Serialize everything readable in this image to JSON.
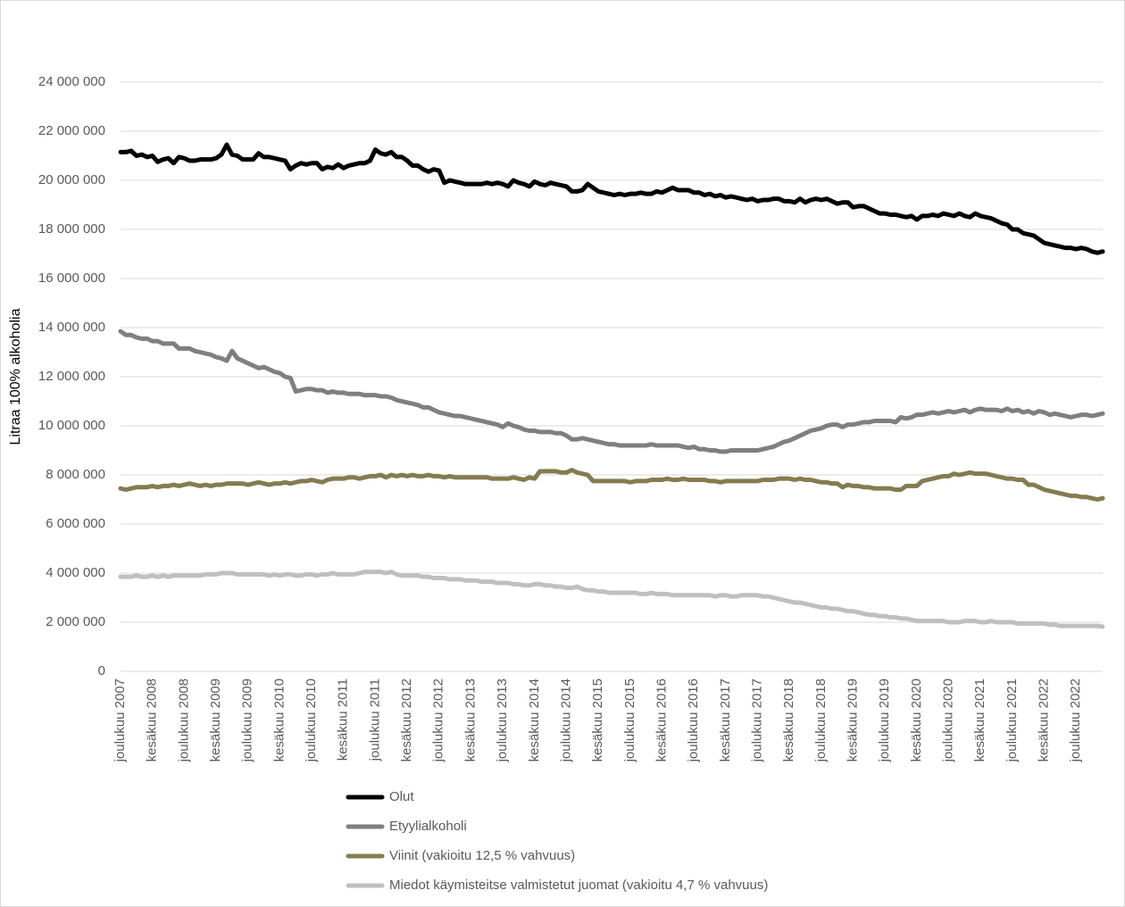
{
  "chart_data": {
    "type": "line",
    "y_label": "Litraa 100% alkoholia",
    "categories": [
      "joulukuu 2007",
      null,
      null,
      null,
      null,
      null,
      "kesäkuu 2008",
      null,
      null,
      null,
      null,
      null,
      "joulukuu 2008",
      null,
      null,
      null,
      null,
      null,
      "kesäkuu 2009",
      null,
      null,
      null,
      null,
      null,
      "joulukuu 2009",
      null,
      null,
      null,
      null,
      null,
      "kesäkuu 2010",
      null,
      null,
      null,
      null,
      null,
      "joulukuu 2010",
      null,
      null,
      null,
      null,
      null,
      "kesäkuu 2011",
      null,
      null,
      null,
      null,
      null,
      "joulukuu 2011",
      null,
      null,
      null,
      null,
      null,
      "kesäkuu 2012",
      null,
      null,
      null,
      null,
      null,
      "joulukuu 2012",
      null,
      null,
      null,
      null,
      null,
      "kesäkuu 2013",
      null,
      null,
      null,
      null,
      null,
      "joulukuu 2013",
      null,
      null,
      null,
      null,
      null,
      "kesäkuu 2014",
      null,
      null,
      null,
      null,
      null,
      "joulukuu 2014",
      null,
      null,
      null,
      null,
      null,
      "kesäkuu 2015",
      null,
      null,
      null,
      null,
      null,
      "joulukuu 2015",
      null,
      null,
      null,
      null,
      null,
      "kesäkuu 2016",
      null,
      null,
      null,
      null,
      null,
      "joulukuu 2016",
      null,
      null,
      null,
      null,
      null,
      "kesäkuu 2017",
      null,
      null,
      null,
      null,
      null,
      "joulukuu 2017",
      null,
      null,
      null,
      null,
      null,
      "kesäkuu 2018",
      null,
      null,
      null,
      null,
      null,
      "joulukuu 2018",
      null,
      null,
      null,
      null,
      null,
      "kesäkuu 2019",
      null,
      null,
      null,
      null,
      null,
      "joulukuu 2019",
      null,
      null,
      null,
      null,
      null,
      "kesäkuu 2020",
      null,
      null,
      null,
      null,
      null,
      "joulukuu 2020",
      null,
      null,
      null,
      null,
      null,
      "kesäkuu 2021",
      null,
      null,
      null,
      null,
      null,
      "joulukuu 2021",
      null,
      null,
      null,
      null,
      null,
      "kesäkuu 2022",
      null,
      null,
      null,
      null,
      null,
      "joulukuu 2022",
      null,
      null,
      null,
      null,
      null
    ],
    "series": [
      {
        "name": "Olut",
        "color": "#000000",
        "values": [
          21150000,
          21150000,
          21200000,
          21000000,
          21050000,
          20950000,
          21000000,
          20750000,
          20850000,
          20900000,
          20700000,
          20950000,
          20900000,
          20800000,
          20800000,
          20850000,
          20850000,
          20850000,
          20900000,
          21050000,
          21450000,
          21050000,
          21000000,
          20850000,
          20850000,
          20850000,
          21100000,
          20950000,
          20950000,
          20900000,
          20850000,
          20800000,
          20450000,
          20600000,
          20700000,
          20650000,
          20700000,
          20700000,
          20450000,
          20550000,
          20500000,
          20650000,
          20500000,
          20600000,
          20650000,
          20700000,
          20700000,
          20800000,
          21250000,
          21100000,
          21050000,
          21150000,
          20950000,
          20950000,
          20800000,
          20600000,
          20600000,
          20450000,
          20350000,
          20450000,
          20400000,
          19900000,
          20000000,
          19950000,
          19900000,
          19850000,
          19850000,
          19850000,
          19850000,
          19900000,
          19850000,
          19900000,
          19850000,
          19750000,
          20000000,
          19900000,
          19850000,
          19750000,
          19950000,
          19850000,
          19800000,
          19900000,
          19850000,
          19800000,
          19750000,
          19550000,
          19550000,
          19600000,
          19850000,
          19700000,
          19550000,
          19500000,
          19450000,
          19400000,
          19450000,
          19400000,
          19450000,
          19450000,
          19500000,
          19450000,
          19450000,
          19550000,
          19500000,
          19600000,
          19700000,
          19600000,
          19600000,
          19600000,
          19500000,
          19500000,
          19400000,
          19450000,
          19350000,
          19400000,
          19300000,
          19350000,
          19300000,
          19250000,
          19200000,
          19250000,
          19150000,
          19200000,
          19200000,
          19250000,
          19250000,
          19150000,
          19150000,
          19100000,
          19250000,
          19100000,
          19200000,
          19250000,
          19200000,
          19250000,
          19150000,
          19050000,
          19100000,
          19100000,
          18900000,
          18950000,
          18950000,
          18850000,
          18750000,
          18650000,
          18650000,
          18600000,
          18600000,
          18550000,
          18500000,
          18550000,
          18400000,
          18550000,
          18550000,
          18600000,
          18550000,
          18650000,
          18600000,
          18550000,
          18650000,
          18550000,
          18500000,
          18650000,
          18550000,
          18500000,
          18450000,
          18350000,
          18250000,
          18200000,
          18000000,
          18000000,
          17850000,
          17800000,
          17750000,
          17600000,
          17450000,
          17400000,
          17350000,
          17300000,
          17250000,
          17250000,
          17200000,
          17250000,
          17200000,
          17100000,
          17050000,
          17100000
        ]
      },
      {
        "name": "Etyylialkoholi",
        "color": "#7f7f7f",
        "values": [
          13850000,
          13700000,
          13700000,
          13600000,
          13550000,
          13550000,
          13450000,
          13450000,
          13350000,
          13350000,
          13350000,
          13150000,
          13150000,
          13150000,
          13050000,
          13000000,
          12950000,
          12900000,
          12800000,
          12750000,
          12650000,
          13050000,
          12750000,
          12650000,
          12550000,
          12450000,
          12350000,
          12400000,
          12300000,
          12200000,
          12150000,
          12000000,
          11950000,
          11400000,
          11450000,
          11500000,
          11500000,
          11450000,
          11450000,
          11350000,
          11400000,
          11350000,
          11350000,
          11300000,
          11300000,
          11300000,
          11250000,
          11250000,
          11250000,
          11200000,
          11200000,
          11150000,
          11050000,
          11000000,
          10950000,
          10900000,
          10850000,
          10750000,
          10750000,
          10650000,
          10550000,
          10500000,
          10450000,
          10400000,
          10400000,
          10350000,
          10300000,
          10250000,
          10200000,
          10150000,
          10100000,
          10050000,
          9950000,
          10100000,
          10000000,
          9950000,
          9850000,
          9800000,
          9800000,
          9750000,
          9750000,
          9750000,
          9700000,
          9700000,
          9600000,
          9450000,
          9450000,
          9500000,
          9450000,
          9400000,
          9350000,
          9300000,
          9250000,
          9250000,
          9200000,
          9200000,
          9200000,
          9200000,
          9200000,
          9200000,
          9250000,
          9200000,
          9200000,
          9200000,
          9200000,
          9200000,
          9150000,
          9100000,
          9150000,
          9050000,
          9050000,
          9000000,
          9000000,
          8950000,
          8950000,
          9000000,
          9000000,
          9000000,
          9000000,
          9000000,
          9000000,
          9050000,
          9100000,
          9150000,
          9250000,
          9350000,
          9400000,
          9500000,
          9600000,
          9700000,
          9800000,
          9850000,
          9900000,
          10000000,
          10050000,
          10050000,
          9950000,
          10050000,
          10050000,
          10100000,
          10150000,
          10150000,
          10200000,
          10200000,
          10200000,
          10200000,
          10150000,
          10350000,
          10300000,
          10350000,
          10450000,
          10450000,
          10500000,
          10550000,
          10500000,
          10550000,
          10600000,
          10550000,
          10600000,
          10650000,
          10550000,
          10650000,
          10700000,
          10650000,
          10650000,
          10650000,
          10600000,
          10700000,
          10600000,
          10650000,
          10550000,
          10600000,
          10500000,
          10600000,
          10550000,
          10450000,
          10500000,
          10450000,
          10400000,
          10350000,
          10400000,
          10450000,
          10450000,
          10400000,
          10450000,
          10500000
        ]
      },
      {
        "name": "Viinit (vakioitu 12,5 % vahvuus)",
        "color": "#857b4f",
        "values": [
          7450000,
          7400000,
          7450000,
          7500000,
          7500000,
          7500000,
          7550000,
          7500000,
          7550000,
          7550000,
          7600000,
          7550000,
          7600000,
          7650000,
          7600000,
          7550000,
          7600000,
          7550000,
          7600000,
          7600000,
          7650000,
          7650000,
          7650000,
          7650000,
          7600000,
          7650000,
          7700000,
          7650000,
          7600000,
          7650000,
          7650000,
          7700000,
          7650000,
          7700000,
          7750000,
          7750000,
          7800000,
          7750000,
          7700000,
          7800000,
          7850000,
          7850000,
          7850000,
          7900000,
          7900000,
          7850000,
          7900000,
          7950000,
          7950000,
          8000000,
          7900000,
          8000000,
          7950000,
          8000000,
          7950000,
          8000000,
          7950000,
          7950000,
          8000000,
          7950000,
          7950000,
          7900000,
          7950000,
          7900000,
          7900000,
          7900000,
          7900000,
          7900000,
          7900000,
          7900000,
          7850000,
          7850000,
          7850000,
          7850000,
          7900000,
          7850000,
          7800000,
          7900000,
          7850000,
          8150000,
          8150000,
          8150000,
          8150000,
          8100000,
          8100000,
          8200000,
          8100000,
          8050000,
          8000000,
          7750000,
          7750000,
          7750000,
          7750000,
          7750000,
          7750000,
          7750000,
          7700000,
          7750000,
          7750000,
          7750000,
          7800000,
          7800000,
          7800000,
          7850000,
          7800000,
          7800000,
          7850000,
          7800000,
          7800000,
          7800000,
          7800000,
          7750000,
          7750000,
          7700000,
          7750000,
          7750000,
          7750000,
          7750000,
          7750000,
          7750000,
          7750000,
          7800000,
          7800000,
          7800000,
          7850000,
          7850000,
          7850000,
          7800000,
          7850000,
          7800000,
          7800000,
          7750000,
          7700000,
          7700000,
          7650000,
          7650000,
          7500000,
          7600000,
          7550000,
          7550000,
          7500000,
          7500000,
          7450000,
          7450000,
          7450000,
          7450000,
          7400000,
          7400000,
          7550000,
          7550000,
          7550000,
          7750000,
          7800000,
          7850000,
          7900000,
          7950000,
          7950000,
          8050000,
          8000000,
          8050000,
          8100000,
          8050000,
          8050000,
          8050000,
          8000000,
          7950000,
          7900000,
          7850000,
          7850000,
          7800000,
          7800000,
          7600000,
          7600000,
          7500000,
          7400000,
          7350000,
          7300000,
          7250000,
          7200000,
          7150000,
          7150000,
          7100000,
          7100000,
          7050000,
          7000000,
          7050000
        ]
      },
      {
        "name": "Miedot käymisteitse valmistetut juomat (vakioitu 4,7 % vahvuus)",
        "color": "#bfbfbf",
        "values": [
          3850000,
          3850000,
          3850000,
          3900000,
          3850000,
          3850000,
          3900000,
          3850000,
          3900000,
          3850000,
          3900000,
          3900000,
          3900000,
          3900000,
          3900000,
          3900000,
          3950000,
          3950000,
          3950000,
          4000000,
          4000000,
          4000000,
          3950000,
          3950000,
          3950000,
          3950000,
          3950000,
          3950000,
          3900000,
          3950000,
          3900000,
          3950000,
          3950000,
          3900000,
          3900000,
          3950000,
          3950000,
          3900000,
          3950000,
          3950000,
          4000000,
          3950000,
          3950000,
          3950000,
          3950000,
          4000000,
          4050000,
          4050000,
          4050000,
          4050000,
          4000000,
          4050000,
          3950000,
          3900000,
          3900000,
          3900000,
          3900000,
          3850000,
          3850000,
          3800000,
          3800000,
          3800000,
          3750000,
          3750000,
          3750000,
          3700000,
          3700000,
          3700000,
          3650000,
          3650000,
          3650000,
          3600000,
          3600000,
          3600000,
          3550000,
          3550000,
          3500000,
          3500000,
          3550000,
          3550000,
          3500000,
          3500000,
          3450000,
          3450000,
          3400000,
          3400000,
          3450000,
          3350000,
          3300000,
          3300000,
          3250000,
          3250000,
          3200000,
          3200000,
          3200000,
          3200000,
          3200000,
          3200000,
          3150000,
          3150000,
          3200000,
          3150000,
          3150000,
          3150000,
          3100000,
          3100000,
          3100000,
          3100000,
          3100000,
          3100000,
          3100000,
          3100000,
          3050000,
          3100000,
          3100000,
          3050000,
          3050000,
          3100000,
          3100000,
          3100000,
          3100000,
          3050000,
          3050000,
          3000000,
          2950000,
          2900000,
          2850000,
          2800000,
          2800000,
          2750000,
          2700000,
          2650000,
          2600000,
          2600000,
          2550000,
          2550000,
          2500000,
          2450000,
          2450000,
          2400000,
          2350000,
          2300000,
          2300000,
          2250000,
          2250000,
          2200000,
          2200000,
          2150000,
          2150000,
          2100000,
          2050000,
          2050000,
          2050000,
          2050000,
          2050000,
          2050000,
          2000000,
          2000000,
          2000000,
          2050000,
          2050000,
          2050000,
          2000000,
          2000000,
          2050000,
          2000000,
          2000000,
          2000000,
          2000000,
          1950000,
          1950000,
          1950000,
          1950000,
          1950000,
          1950000,
          1900000,
          1900000,
          1850000,
          1850000,
          1850000,
          1850000,
          1850000,
          1850000,
          1850000,
          1850000,
          1820000
        ]
      }
    ],
    "ylim": [
      0,
      24000000
    ],
    "yticks": [
      0,
      {
        "value": 2000000,
        "label": "2 000 000"
      },
      {
        "value": 4000000,
        "label": "4 000 000"
      },
      {
        "value": 6000000,
        "label": "6 000 000"
      },
      {
        "value": 8000000,
        "label": "8 000 000"
      },
      {
        "value": 10000000,
        "label": "10 000 000"
      },
      {
        "value": 12000000,
        "label": "12 000 000"
      },
      {
        "value": 14000000,
        "label": "14 000 000"
      },
      {
        "value": 16000000,
        "label": "16 000 000"
      },
      {
        "value": 18000000,
        "label": "18 000 000"
      },
      {
        "value": 20000000,
        "label": "20 000 000"
      },
      {
        "value": 22000000,
        "label": "22 000 000"
      },
      {
        "value": 24000000,
        "label": "24 000 000"
      }
    ],
    "grid": true
  }
}
